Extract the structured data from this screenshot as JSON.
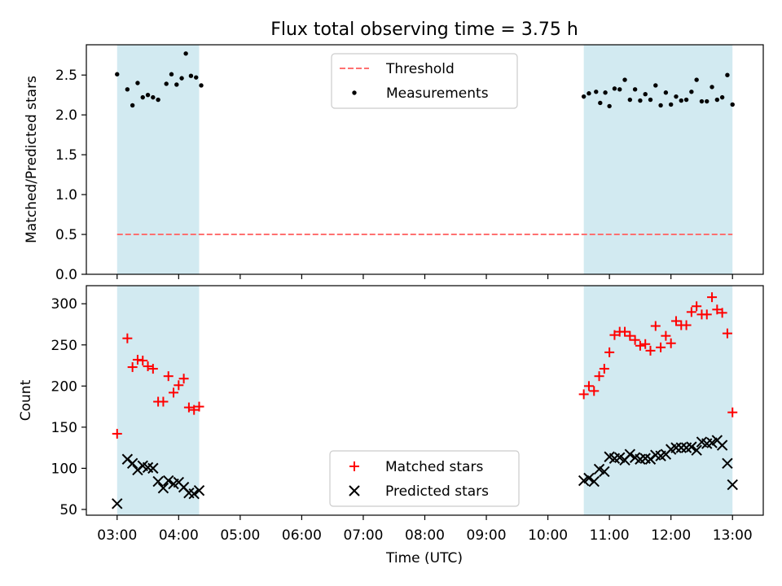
{
  "title": "Flux total observing time = 3.75 h",
  "colors": {
    "band": "#add8e6",
    "threshold": "#ff7070",
    "measurements": "#000000",
    "matched": "#ff0000",
    "predicted": "#000000"
  },
  "chart_data": [
    {
      "type": "scatter",
      "panel": "top",
      "title": "Flux total observing time = 3.75 h",
      "xlabel": "",
      "ylabel": "Matched/Predicted stars",
      "xlim": [
        "02:30",
        "13:30"
      ],
      "ylim": [
        0,
        2.88
      ],
      "yticks": [
        0.0,
        0.5,
        1.0,
        1.5,
        2.0,
        2.5
      ],
      "ytick_labels": [
        "0.0",
        "0.5",
        "1.0",
        "1.5",
        "2.0",
        "2.5"
      ],
      "legend_position": "top-center",
      "shaded_regions": [
        [
          "03:00",
          "04:20"
        ],
        [
          "10:35",
          "13:00"
        ]
      ],
      "threshold": {
        "name": "Threshold",
        "value": 0.5,
        "x": [
          "03:00",
          "13:00"
        ],
        "style": "dashed"
      },
      "series": [
        {
          "name": "Measurements",
          "marker": "dot",
          "points": [
            [
              "03:00",
              2.51
            ],
            [
              "03:10",
              2.32
            ],
            [
              "03:15",
              2.12
            ],
            [
              "03:20",
              2.4
            ],
            [
              "03:25",
              2.22
            ],
            [
              "03:30",
              2.25
            ],
            [
              "03:35",
              2.22
            ],
            [
              "03:40",
              2.19
            ],
            [
              "03:48",
              2.39
            ],
            [
              "03:53",
              2.51
            ],
            [
              "03:58",
              2.38
            ],
            [
              "04:03",
              2.46
            ],
            [
              "04:07",
              2.77
            ],
            [
              "04:12",
              2.49
            ],
            [
              "04:17",
              2.47
            ],
            [
              "04:22",
              2.37
            ],
            [
              "10:35",
              2.23
            ],
            [
              "10:40",
              2.27
            ],
            [
              "10:47",
              2.29
            ],
            [
              "10:51",
              2.15
            ],
            [
              "10:56",
              2.28
            ],
            [
              "11:00",
              2.11
            ],
            [
              "11:05",
              2.33
            ],
            [
              "11:10",
              2.32
            ],
            [
              "11:15",
              2.44
            ],
            [
              "11:20",
              2.19
            ],
            [
              "11:25",
              2.32
            ],
            [
              "11:30",
              2.18
            ],
            [
              "11:35",
              2.26
            ],
            [
              "11:40",
              2.19
            ],
            [
              "11:45",
              2.37
            ],
            [
              "11:50",
              2.12
            ],
            [
              "11:55",
              2.28
            ],
            [
              "12:00",
              2.13
            ],
            [
              "12:05",
              2.23
            ],
            [
              "12:10",
              2.18
            ],
            [
              "12:15",
              2.19
            ],
            [
              "12:20",
              2.29
            ],
            [
              "12:25",
              2.44
            ],
            [
              "12:30",
              2.17
            ],
            [
              "12:35",
              2.17
            ],
            [
              "12:40",
              2.35
            ],
            [
              "12:45",
              2.19
            ],
            [
              "12:50",
              2.22
            ],
            [
              "12:55",
              2.5
            ],
            [
              "13:00",
              2.13
            ]
          ]
        }
      ]
    },
    {
      "type": "scatter",
      "panel": "bottom",
      "xlabel": "Time (UTC)",
      "ylabel": "Count",
      "xlim": [
        "02:30",
        "13:30"
      ],
      "ylim": [
        43,
        322
      ],
      "yticks": [
        50,
        100,
        150,
        200,
        250,
        300
      ],
      "ytick_labels": [
        "50",
        "100",
        "150",
        "200",
        "250",
        "300"
      ],
      "xticks": [
        "03:00",
        "04:00",
        "05:00",
        "06:00",
        "07:00",
        "08:00",
        "09:00",
        "10:00",
        "11:00",
        "12:00",
        "13:00"
      ],
      "xtick_labels": [
        "03:00",
        "04:00",
        "05:00",
        "06:00",
        "07:00",
        "08:00",
        "09:00",
        "10:00",
        "11:00",
        "12:00",
        "13:00"
      ],
      "legend_position": "bottom-center",
      "shaded_regions": [
        [
          "03:00",
          "04:20"
        ],
        [
          "10:35",
          "13:00"
        ]
      ],
      "series": [
        {
          "name": "Matched stars",
          "marker": "plus",
          "points": [
            [
              "03:00",
              142
            ],
            [
              "03:10",
              258
            ],
            [
              "03:15",
              223
            ],
            [
              "03:20",
              232
            ],
            [
              "03:25",
              231
            ],
            [
              "03:30",
              224
            ],
            [
              "03:35",
              221
            ],
            [
              "03:40",
              181
            ],
            [
              "03:45",
              181
            ],
            [
              "03:50",
              212
            ],
            [
              "03:55",
              192
            ],
            [
              "04:00",
              201
            ],
            [
              "04:05",
              209
            ],
            [
              "04:10",
              174
            ],
            [
              "04:15",
              171
            ],
            [
              "04:20",
              175
            ],
            [
              "10:35",
              190
            ],
            [
              "10:40",
              200
            ],
            [
              "10:45",
              194
            ],
            [
              "10:50",
              212
            ],
            [
              "10:55",
              221
            ],
            [
              "11:00",
              241
            ],
            [
              "11:05",
              262
            ],
            [
              "11:10",
              266
            ],
            [
              "11:15",
              266
            ],
            [
              "11:20",
              261
            ],
            [
              "11:25",
              256
            ],
            [
              "11:30",
              249
            ],
            [
              "11:35",
              251
            ],
            [
              "11:40",
              243
            ],
            [
              "11:45",
              273
            ],
            [
              "11:50",
              247
            ],
            [
              "11:55",
              261
            ],
            [
              "12:00",
              252
            ],
            [
              "12:05",
              279
            ],
            [
              "12:10",
              274
            ],
            [
              "12:15",
              274
            ],
            [
              "12:20",
              290
            ],
            [
              "12:25",
              297
            ],
            [
              "12:30",
              287
            ],
            [
              "12:35",
              287
            ],
            [
              "12:40",
              308
            ],
            [
              "12:45",
              293
            ],
            [
              "12:50",
              289
            ],
            [
              "12:55",
              264
            ],
            [
              "13:00",
              168
            ]
          ]
        },
        {
          "name": "Predicted stars",
          "marker": "x",
          "points": [
            [
              "03:00",
              57
            ],
            [
              "03:10",
              111
            ],
            [
              "03:15",
              106
            ],
            [
              "03:20",
              98
            ],
            [
              "03:25",
              103
            ],
            [
              "03:30",
              101
            ],
            [
              "03:35",
              100
            ],
            [
              "03:40",
              84
            ],
            [
              "03:45",
              76
            ],
            [
              "03:50",
              85
            ],
            [
              "03:55",
              81
            ],
            [
              "04:00",
              83
            ],
            [
              "04:05",
              77
            ],
            [
              "04:10",
              70
            ],
            [
              "04:15",
              69
            ],
            [
              "04:20",
              73
            ],
            [
              "10:35",
              85
            ],
            [
              "10:40",
              88
            ],
            [
              "10:45",
              84
            ],
            [
              "10:50",
              99
            ],
            [
              "10:55",
              96
            ],
            [
              "11:00",
              114
            ],
            [
              "11:05",
              112
            ],
            [
              "11:10",
              113
            ],
            [
              "11:15",
              110
            ],
            [
              "11:20",
              117
            ],
            [
              "11:25",
              113
            ],
            [
              "11:30",
              111
            ],
            [
              "11:35",
              112
            ],
            [
              "11:40",
              111
            ],
            [
              "11:45",
              116
            ],
            [
              "11:50",
              115
            ],
            [
              "11:55",
              117
            ],
            [
              "12:00",
              123
            ],
            [
              "12:05",
              125
            ],
            [
              "12:10",
              125
            ],
            [
              "12:15",
              125
            ],
            [
              "12:20",
              126
            ],
            [
              "12:25",
              122
            ],
            [
              "12:30",
              132
            ],
            [
              "12:35",
              130
            ],
            [
              "12:40",
              131
            ],
            [
              "12:45",
              134
            ],
            [
              "12:50",
              128
            ],
            [
              "12:55",
              106
            ],
            [
              "13:00",
              80
            ]
          ]
        }
      ]
    }
  ]
}
